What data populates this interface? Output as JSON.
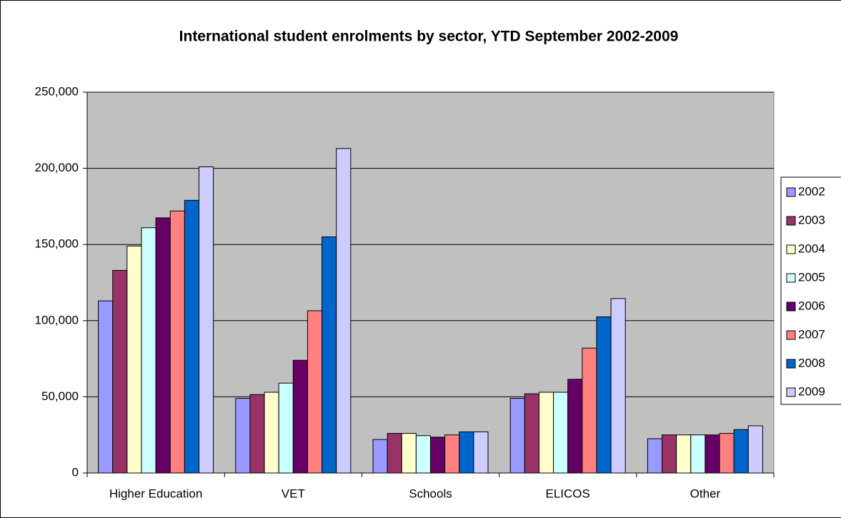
{
  "chart_data": {
    "type": "bar",
    "title": "International student enrolments by sector, YTD September 2002-2009",
    "categories": [
      "Higher Education",
      "VET",
      "Schools",
      "ELICOS",
      "Other"
    ],
    "series": [
      {
        "name": "2002",
        "color": "#9999FF",
        "values": [
          113000,
          49000,
          22000,
          49000,
          22500
        ]
      },
      {
        "name": "2003",
        "color": "#993366",
        "values": [
          133000,
          51500,
          26000,
          52000,
          25000
        ]
      },
      {
        "name": "2004",
        "color": "#FFFFCC",
        "values": [
          149000,
          53000,
          26000,
          53000,
          25000
        ]
      },
      {
        "name": "2005",
        "color": "#CCFFFF",
        "values": [
          161000,
          59000,
          24500,
          53000,
          25000
        ]
      },
      {
        "name": "2006",
        "color": "#660066",
        "values": [
          167500,
          74000,
          23500,
          61500,
          25000
        ]
      },
      {
        "name": "2007",
        "color": "#FF8080",
        "values": [
          172000,
          106500,
          25000,
          82000,
          26000
        ]
      },
      {
        "name": "2008",
        "color": "#0066CC",
        "values": [
          179000,
          155000,
          27000,
          102500,
          28500
        ]
      },
      {
        "name": "2009",
        "color": "#CCCCFF",
        "values": [
          201000,
          213000,
          27000,
          114500,
          31000
        ]
      }
    ],
    "ylim": [
      0,
      250000
    ],
    "yticks": [
      0,
      {
        "value": 50000,
        "label": "50,000"
      },
      {
        "value": 100000,
        "label": "100,000"
      },
      {
        "value": 150000,
        "label": "150,000"
      },
      {
        "value": 200000,
        "label": "200,000"
      },
      {
        "value": 250000,
        "label": "250,000"
      }
    ],
    "grid": true,
    "legend": "right"
  }
}
